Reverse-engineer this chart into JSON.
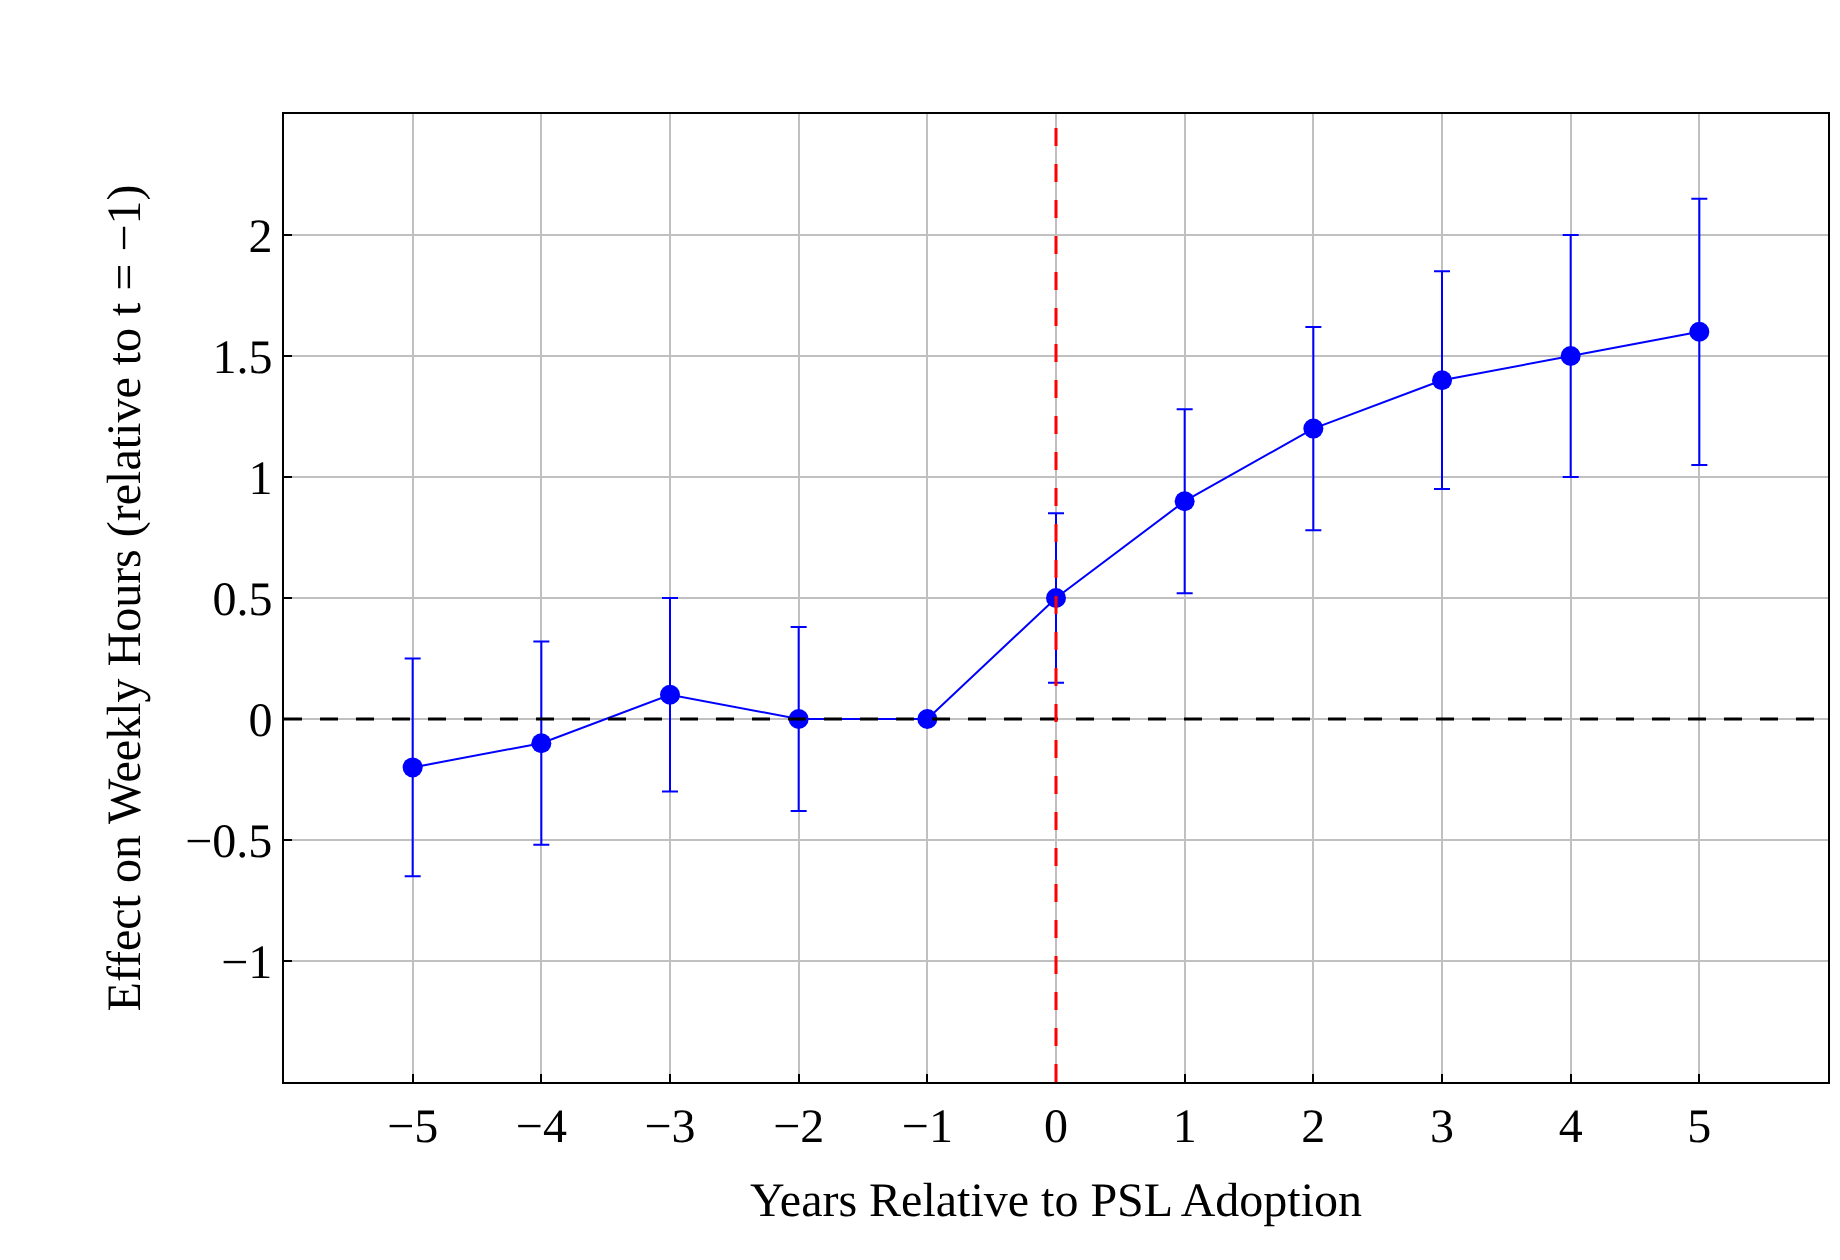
{
  "chart_data": {
    "type": "line",
    "xlabel": "Years Relative to PSL Adoption",
    "ylabel": "Effect on Weekly Hours (relative to t = −1)",
    "x": [
      -5,
      -4,
      -3,
      -2,
      -1,
      0,
      1,
      2,
      3,
      4,
      5
    ],
    "series": [
      {
        "color": "#0000ff",
        "values": [
          -0.2,
          -0.1,
          0.1,
          0.0,
          0.0,
          0.5,
          0.9,
          1.2,
          1.4,
          1.5,
          1.6
        ],
        "errors": [
          0.45,
          0.42,
          0.4,
          0.38,
          null,
          0.35,
          0.38,
          0.42,
          0.45,
          0.5,
          0.55
        ]
      }
    ],
    "xlim": [
      -6,
      6
    ],
    "xticks": [
      {
        "value": -5,
        "label": "−5"
      },
      {
        "value": -4,
        "label": "−4"
      },
      {
        "value": -3,
        "label": "−3"
      },
      {
        "value": -2,
        "label": "−2"
      },
      {
        "value": -1,
        "label": "−1"
      },
      0,
      1,
      2,
      3,
      4,
      5
    ],
    "ylim": [
      -1.5,
      2.5
    ],
    "yticks": [
      {
        "value": -1,
        "label": "−1"
      },
      {
        "value": -0.5,
        "label": "−0.5"
      },
      0,
      0.5,
      1,
      1.5,
      2
    ],
    "ref_lines": [
      {
        "axis": "y",
        "value": 0,
        "color": "#000000",
        "line_style": "dashed"
      },
      {
        "axis": "x",
        "value": 0,
        "color": "#ff0000",
        "line_style": "dashed"
      }
    ],
    "grid": true,
    "marker": "circle",
    "line_style": "solid"
  }
}
